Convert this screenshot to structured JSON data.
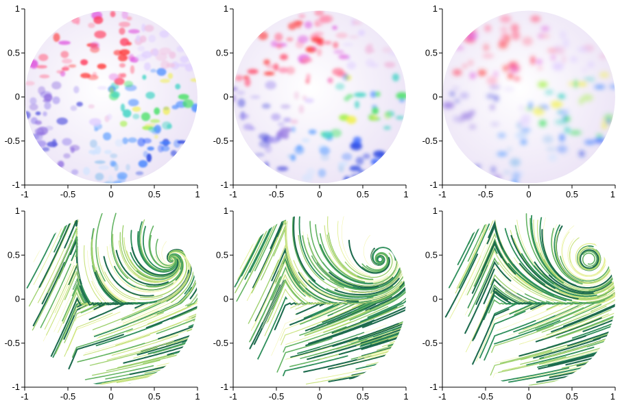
{
  "chart_data": [
    {
      "type": "heatmap",
      "xlim": [
        -1,
        1
      ],
      "ylim": [
        -1,
        1
      ],
      "xticks": [
        -1,
        -0.5,
        0,
        0.5,
        1
      ],
      "yticks": [
        -1,
        -0.5,
        0,
        0.5,
        1
      ]
    },
    {
      "type": "heatmap",
      "xlim": [
        -1,
        1
      ],
      "ylim": [
        -1,
        1
      ],
      "xticks": [
        -1,
        -0.5,
        0,
        0.5,
        1
      ],
      "yticks": [
        -1,
        -0.5,
        0,
        0.5,
        1
      ]
    },
    {
      "type": "heatmap",
      "xlim": [
        -1,
        1
      ],
      "ylim": [
        -1,
        1
      ],
      "xticks": [
        -1,
        -0.5,
        0,
        0.5,
        1
      ],
      "yticks": [
        -1,
        -0.5,
        0,
        0.5,
        1
      ]
    },
    {
      "type": "streamlines",
      "xlim": [
        -1,
        1
      ],
      "ylim": [
        -1,
        1
      ],
      "xticks": [
        -1,
        -0.5,
        0,
        0.5,
        1
      ],
      "yticks": [
        -1,
        -0.5,
        0,
        0.5,
        1
      ]
    },
    {
      "type": "streamlines",
      "xlim": [
        -1,
        1
      ],
      "ylim": [
        -1,
        1
      ],
      "xticks": [
        -1,
        -0.5,
        0,
        0.5,
        1
      ],
      "yticks": [
        -1,
        -0.5,
        0,
        0.5,
        1
      ]
    },
    {
      "type": "streamlines",
      "xlim": [
        -1,
        1
      ],
      "ylim": [
        -1,
        1
      ],
      "xticks": [
        -1,
        -0.5,
        0,
        0.5,
        1
      ],
      "yticks": [
        -1,
        -0.5,
        0,
        0.5,
        1
      ]
    }
  ]
}
